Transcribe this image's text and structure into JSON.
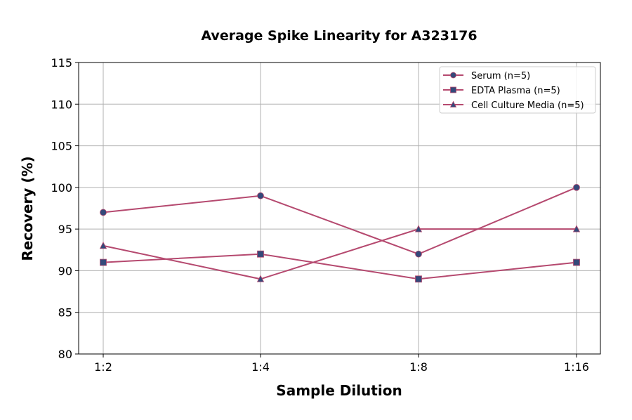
{
  "chart_data": {
    "type": "line",
    "title": "Average Spike Linearity for A323176",
    "xlabel": "Sample Dilution",
    "ylabel": "Recovery (%)",
    "categories": [
      "1:2",
      "1:4",
      "1:8",
      "1:16"
    ],
    "ylim": [
      80,
      115
    ],
    "yticks": [
      80,
      85,
      90,
      95,
      100,
      105,
      110,
      115
    ],
    "grid": true,
    "legend_position": "top-right",
    "line_color": "#b5496f",
    "marker_color": "#34497a",
    "series": [
      {
        "name": "Serum (n=5)",
        "marker": "circle",
        "values": [
          97,
          99,
          92,
          100
        ]
      },
      {
        "name": "EDTA Plasma (n=5)",
        "marker": "square",
        "values": [
          91,
          92,
          89,
          91
        ]
      },
      {
        "name": "Cell Culture Media (n=5)",
        "marker": "triangle",
        "values": [
          93,
          89,
          95,
          95
        ]
      }
    ]
  }
}
